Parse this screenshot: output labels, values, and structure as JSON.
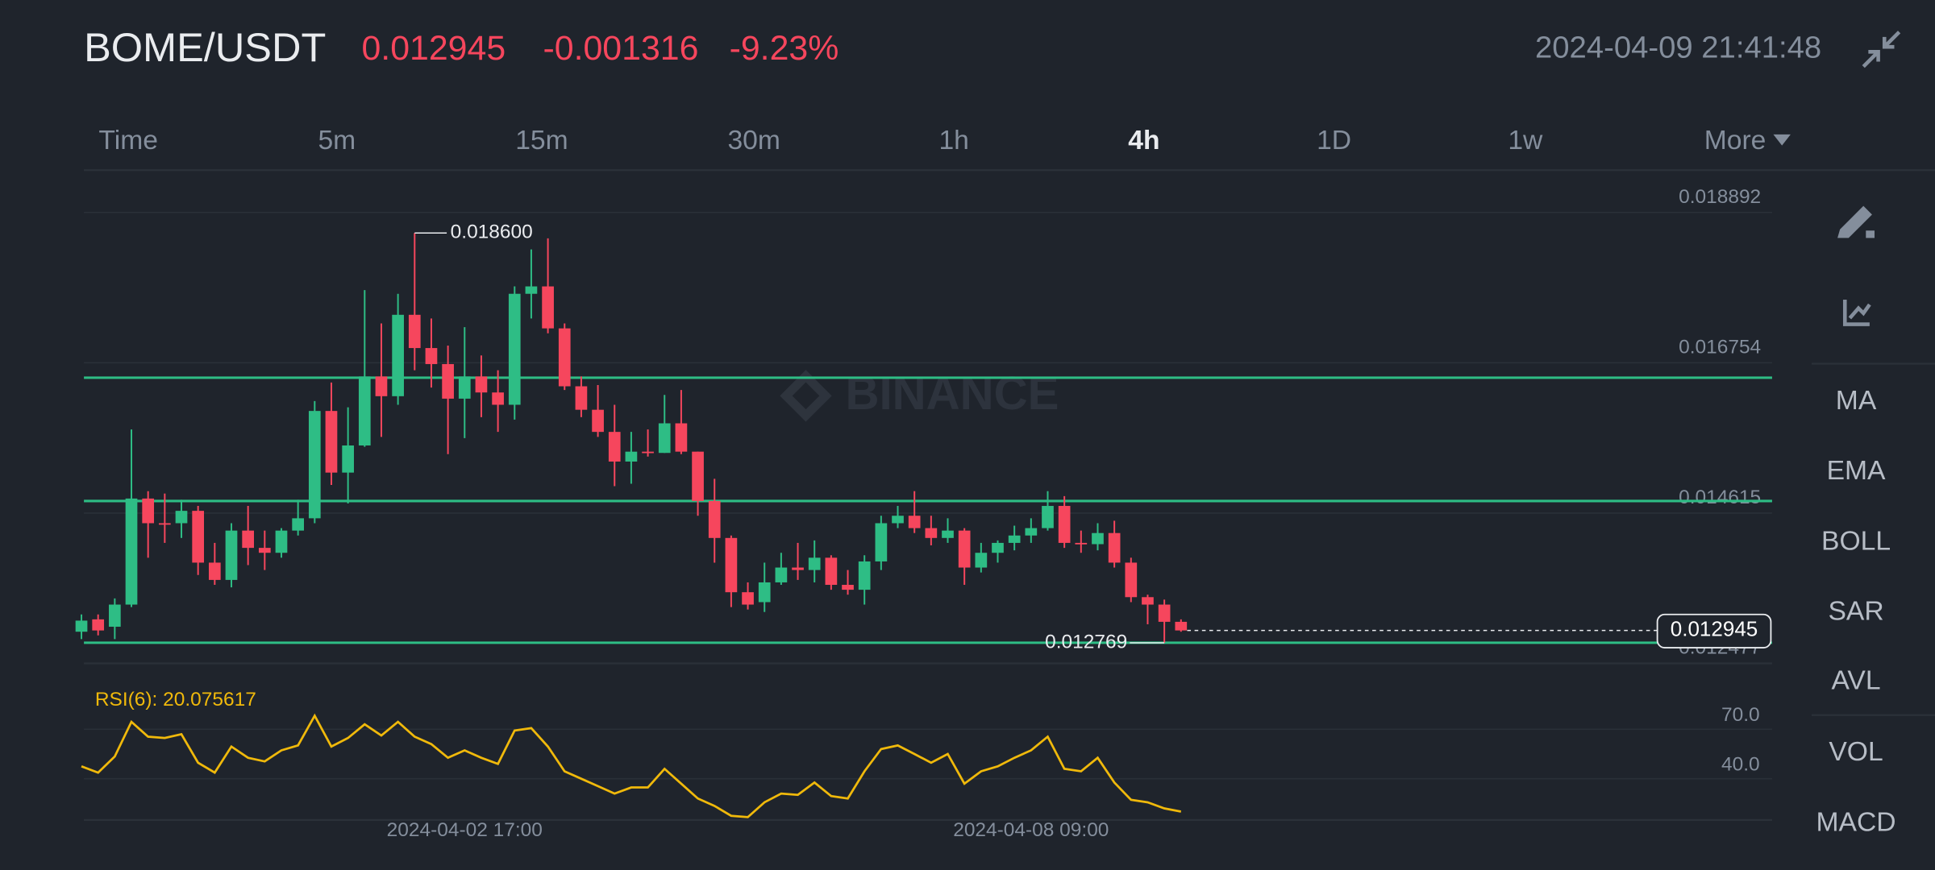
{
  "header": {
    "pair": "BOME/USDT",
    "price": "0.012945",
    "change": "-0.001316",
    "change_percent": "-9.23%",
    "datetime": "2024-04-09 21:41:48"
  },
  "tabs": [
    {
      "label": "Time"
    },
    {
      "label": "5m"
    },
    {
      "label": "15m"
    },
    {
      "label": "30m"
    },
    {
      "label": "1h"
    },
    {
      "label": "4h",
      "active": true
    },
    {
      "label": "1D"
    },
    {
      "label": "1w"
    },
    {
      "label": "More"
    }
  ],
  "sidebar": [
    "MA",
    "EMA",
    "BOLL",
    "SAR",
    "AVL",
    "VOL",
    "MACD"
  ],
  "watermark": "BINANCE",
  "chart_data": [
    {
      "type": "candlestick",
      "categories": [
        null,
        null,
        null,
        null,
        null,
        null,
        null,
        null,
        null,
        null,
        null,
        null,
        null,
        null,
        null,
        null,
        null,
        null,
        null,
        null,
        null,
        null,
        null,
        "2024-04-02 17:00",
        null,
        null,
        null,
        null,
        null,
        null,
        null,
        null,
        null,
        null,
        null,
        null,
        null,
        null,
        null,
        null,
        null,
        null,
        null,
        null,
        null,
        null,
        null,
        null,
        null,
        null,
        null,
        null,
        null,
        null,
        null,
        null,
        null,
        "2024-04-08 09:00",
        null,
        null,
        null,
        null,
        null,
        null,
        null,
        null,
        null
      ],
      "open": [
        0.012927,
        0.013103,
        0.012998,
        0.013313,
        0.014822,
        0.014471,
        0.014471,
        0.014647,
        0.01391,
        0.013664,
        0.014366,
        0.01412,
        0.01405,
        0.014366,
        0.014541,
        0.016068,
        0.015191,
        0.015577,
        0.016559,
        0.016278,
        0.017436,
        0.016963,
        0.016735,
        0.016243,
        0.016559,
        0.016331,
        0.016156,
        0.017735,
        0.01784,
        0.017243,
        0.016419,
        0.016085,
        0.01577,
        0.015348,
        0.015489,
        0.015471,
        0.015892,
        0.015489,
        0.014787,
        0.014261,
        0.013489,
        0.013348,
        0.013629,
        0.01384,
        0.013805,
        0.01398,
        0.013594,
        0.013524,
        0.013927,
        0.014471,
        0.014577,
        0.014401,
        0.014261,
        0.014366,
        0.01384,
        0.01405,
        0.014191,
        0.014296,
        0.014401,
        0.014717,
        0.014191,
        0.014173,
        0.014331,
        0.01391,
        0.013419,
        0.013313,
        0.013068
      ],
      "high": [
        0.013173,
        0.013173,
        0.013401,
        0.015805,
        0.014927,
        0.014893,
        0.014805,
        0.014717,
        0.014191,
        0.014471,
        0.014717,
        0.014366,
        0.014401,
        0.014805,
        0.016208,
        0.016472,
        0.01612,
        0.017787,
        0.017313,
        0.017735,
        0.0186,
        0.017383,
        0.016998,
        0.017261,
        0.016858,
        0.016647,
        0.01784,
        0.018366,
        0.018524,
        0.017313,
        0.016559,
        0.016436,
        0.016156,
        0.01577,
        0.015805,
        0.016296,
        0.016366,
        0.015489,
        0.015103,
        0.014296,
        0.013629,
        0.01391,
        0.01405,
        0.014191,
        0.014226,
        0.014015,
        0.013805,
        0.014015,
        0.014577,
        0.014717,
        0.014927,
        0.014577,
        0.014541,
        0.014401,
        0.014191,
        0.014226,
        0.014436,
        0.014541,
        0.014927,
        0.014857,
        0.014366,
        0.014471,
        0.014506,
        0.01398,
        0.013454,
        0.013384,
        0.013103
      ],
      "low": [
        0.012822,
        0.012875,
        0.012822,
        0.013278,
        0.01398,
        0.014191,
        0.014261,
        0.013734,
        0.013594,
        0.013559,
        0.013875,
        0.013805,
        0.01398,
        0.014296,
        0.014471,
        0.015015,
        0.014752,
        0.015559,
        0.015699,
        0.016156,
        0.016647,
        0.016401,
        0.015454,
        0.015682,
        0.01598,
        0.01577,
        0.015945,
        0.017383,
        0.017173,
        0.016366,
        0.01598,
        0.015699,
        0.014998,
        0.015033,
        0.015419,
        0.015471,
        0.015454,
        0.014577,
        0.01391,
        0.013278,
        0.013243,
        0.013208,
        0.013594,
        0.013664,
        0.013629,
        0.013524,
        0.013454,
        0.013313,
        0.013805,
        0.014401,
        0.014331,
        0.014156,
        0.014191,
        0.013594,
        0.01377,
        0.01391,
        0.014085,
        0.014191,
        0.014366,
        0.01412,
        0.01405,
        0.014085,
        0.01384,
        0.013348,
        0.013033,
        0.012769,
        0.012927
      ],
      "close": [
        0.013085,
        0.012945,
        0.013313,
        0.014822,
        0.014471,
        0.014454,
        0.014647,
        0.01391,
        0.013664,
        0.014366,
        0.01412,
        0.01405,
        0.014366,
        0.014541,
        0.016068,
        0.015191,
        0.015577,
        0.016559,
        0.016278,
        0.017436,
        0.016963,
        0.016735,
        0.016243,
        0.016559,
        0.016331,
        0.016156,
        0.017735,
        0.01784,
        0.017243,
        0.016419,
        0.016085,
        0.01577,
        0.015348,
        0.015489,
        0.015471,
        0.015892,
        0.015489,
        0.014787,
        0.014261,
        0.013489,
        0.013313,
        0.013629,
        0.01384,
        0.013805,
        0.01398,
        0.013594,
        0.013524,
        0.013927,
        0.014471,
        0.014577,
        0.014401,
        0.014261,
        0.014366,
        0.01384,
        0.01405,
        0.014191,
        0.014296,
        0.014401,
        0.014717,
        0.014191,
        0.014173,
        0.014331,
        0.01391,
        0.013419,
        0.013313,
        0.013068,
        0.012945
      ],
      "colors": {
        "up": "#2ebd85",
        "down": "#f6465d",
        "level": "#2ebd85"
      },
      "ylim": [
        0.012477,
        0.019459
      ],
      "yticks": [
        0.018892,
        0.016754,
        0.014615,
        0.012477
      ],
      "grid": true,
      "levels": [
        0.016541,
        0.014787,
        0.01277
      ],
      "last_price": 0.012945,
      "high_label": {
        "value": 0.0186,
        "label": "0.018600"
      },
      "low_label": 0.012769
    },
    {
      "type": "line",
      "legend": "RSI(6): 20.075617",
      "color": "#f0b90b",
      "values": [
        47.5,
        43.7,
        53.5,
        74.5,
        65.5,
        64.7,
        67,
        49.7,
        43.7,
        59.5,
        52.7,
        50.5,
        57.2,
        60.2,
        78.2,
        59.5,
        64.7,
        73,
        66.2,
        74.5,
        65.5,
        61,
        52.7,
        57.2,
        52.7,
        49,
        69.2,
        70.7,
        59.5,
        44.5,
        40,
        35.5,
        31,
        34.7,
        34.7,
        46,
        37,
        28,
        23.5,
        17.5,
        16.7,
        25.7,
        31,
        30.2,
        37.7,
        29.5,
        28,
        44.5,
        58,
        60.2,
        55,
        49.7,
        55,
        37,
        44.5,
        47.5,
        52.7,
        57.2,
        65.5,
        46,
        44.5,
        52.7,
        37.7,
        27.2,
        25.7,
        22,
        20.075617
      ],
      "ylim": [
        15,
        101
      ],
      "yticks": [
        {
          "value": 70,
          "label": "70.0"
        },
        {
          "value": 40,
          "label": "40.0"
        }
      ]
    }
  ]
}
